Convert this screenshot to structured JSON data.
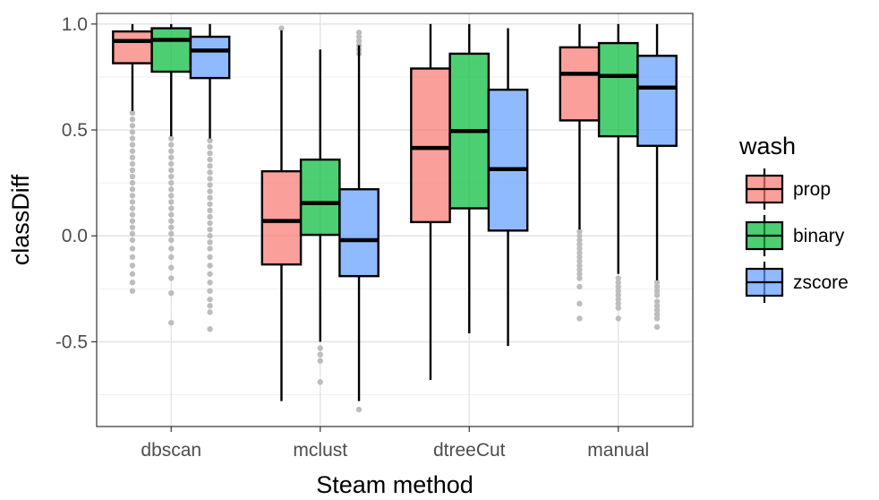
{
  "chart_data": {
    "type": "boxplot",
    "xlabel": "Steam method",
    "ylabel": "classDiff",
    "categories": [
      "dbscan",
      "mclust",
      "dtreeCut",
      "manual"
    ],
    "ylim": [
      -0.9,
      1.05
    ],
    "yticks": [
      -0.5,
      0.0,
      0.5,
      1.0
    ],
    "ytick_labels": [
      "-0.5",
      "0.0",
      "0.5",
      "1.0"
    ],
    "grid": true,
    "legend": {
      "title": "wash",
      "position": "right"
    },
    "series": [
      {
        "name": "prop",
        "color": "#F8766D",
        "boxes": [
          {
            "q1": 0.815,
            "median": 0.92,
            "q3": 0.965,
            "whisker_low": 0.59,
            "whisker_high": 1.0,
            "outliers": [
              0.58,
              0.55,
              0.52,
              0.49,
              0.46,
              0.43,
              0.4,
              0.37,
              0.34,
              0.31,
              0.28,
              0.25,
              0.22,
              0.19,
              0.16,
              0.13,
              0.1,
              0.07,
              0.04,
              0.01,
              -0.02,
              -0.06,
              -0.1,
              -0.14,
              -0.18,
              -0.22,
              -0.26
            ]
          },
          {
            "q1": -0.135,
            "median": 0.07,
            "q3": 0.305,
            "whisker_low": -0.78,
            "whisker_high": 0.97,
            "outliers": [
              0.98
            ]
          },
          {
            "q1": 0.065,
            "median": 0.415,
            "q3": 0.79,
            "whisker_low": -0.68,
            "whisker_high": 1.0,
            "outliers": []
          },
          {
            "q1": 0.545,
            "median": 0.765,
            "q3": 0.89,
            "whisker_low": 0.03,
            "whisker_high": 1.0,
            "outliers": [
              0.02,
              0.0,
              -0.02,
              -0.04,
              -0.06,
              -0.08,
              -0.1,
              -0.12,
              -0.14,
              -0.16,
              -0.18,
              -0.2,
              -0.24,
              -0.32,
              -0.39
            ]
          }
        ]
      },
      {
        "name": "binary",
        "color": "#00BA38",
        "boxes": [
          {
            "q1": 0.775,
            "median": 0.925,
            "q3": 0.98,
            "whisker_low": 0.47,
            "whisker_high": 1.0,
            "outliers": [
              0.46,
              0.43,
              0.4,
              0.37,
              0.34,
              0.31,
              0.28,
              0.25,
              0.22,
              0.19,
              0.16,
              0.13,
              0.1,
              0.07,
              0.04,
              0.01,
              -0.02,
              -0.06,
              -0.1,
              -0.15,
              -0.2,
              -0.27,
              -0.41
            ]
          },
          {
            "q1": 0.005,
            "median": 0.155,
            "q3": 0.36,
            "whisker_low": -0.5,
            "whisker_high": 0.88,
            "outliers": [
              -0.53,
              -0.56,
              -0.59,
              -0.69
            ]
          },
          {
            "q1": 0.13,
            "median": 0.495,
            "q3": 0.86,
            "whisker_low": -0.46,
            "whisker_high": 1.0,
            "outliers": []
          },
          {
            "q1": 0.47,
            "median": 0.755,
            "q3": 0.91,
            "whisker_low": -0.18,
            "whisker_high": 1.0,
            "outliers": [
              -0.2,
              -0.22,
              -0.24,
              -0.26,
              -0.28,
              -0.3,
              -0.32,
              -0.34,
              -0.39
            ]
          }
        ]
      },
      {
        "name": "zscore",
        "color": "#619CFF",
        "boxes": [
          {
            "q1": 0.745,
            "median": 0.875,
            "q3": 0.94,
            "whisker_low": 0.46,
            "whisker_high": 1.0,
            "outliers": [
              0.45,
              0.42,
              0.39,
              0.36,
              0.33,
              0.3,
              0.27,
              0.24,
              0.21,
              0.18,
              0.15,
              0.12,
              0.09,
              0.06,
              0.03,
              0.0,
              -0.03,
              -0.06,
              -0.1,
              -0.14,
              -0.18,
              -0.22,
              -0.26,
              -0.3,
              -0.33,
              -0.36,
              -0.44
            ]
          },
          {
            "q1": -0.19,
            "median": -0.02,
            "q3": 0.22,
            "whisker_low": -0.78,
            "whisker_high": 0.9,
            "outliers": [
              0.96,
              0.94,
              0.92,
              0.9,
              0.88,
              0.86,
              -0.82
            ]
          },
          {
            "q1": 0.025,
            "median": 0.315,
            "q3": 0.69,
            "whisker_low": -0.52,
            "whisker_high": 0.98,
            "outliers": []
          },
          {
            "q1": 0.425,
            "median": 0.7,
            "q3": 0.85,
            "whisker_low": -0.21,
            "whisker_high": 1.0,
            "outliers": [
              -0.22,
              -0.24,
              -0.26,
              -0.28,
              -0.31,
              -0.33,
              -0.35,
              -0.37,
              -0.39,
              -0.43
            ]
          }
        ]
      }
    ]
  }
}
